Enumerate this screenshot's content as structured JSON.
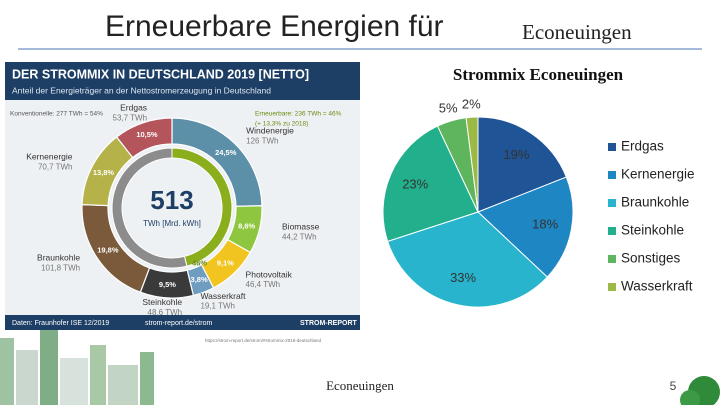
{
  "slide": {
    "title_sans": "Erneuerbare Energien für",
    "title_serif": "Econeuingen",
    "source_url": "https://strom-report.de/strom/#strommix-2019-deutschland",
    "footer": "Econeuingen",
    "page_number": "5"
  },
  "chart_data": [
    {
      "type": "pie",
      "title": "Strommix Econeuingen",
      "categories": [
        "Erdgas",
        "Kernenergie",
        "Braunkohle",
        "Steinkohle",
        "Sonstiges",
        "Wasserkraft"
      ],
      "values": [
        19,
        18,
        33,
        23,
        5,
        2
      ],
      "value_labels": [
        "19%",
        "18%",
        "33%",
        "23%",
        "5%",
        "2%"
      ],
      "colors": [
        "#1f5596",
        "#1f86c4",
        "#27b4cc",
        "#22b08c",
        "#5eb55e",
        "#9cb845"
      ],
      "legend": "right"
    },
    {
      "type": "donut",
      "title": "DER STROMMIX IN DEUTSCHLAND 2019 [NETTO]",
      "subtitle": "Anteil der Energieträger an der Nettostromerzeugung in Deutschland",
      "total": "513",
      "total_unit": "TWh [Mrd. kWh]",
      "change_note": "(+ 13,3% zu 2018)",
      "categories": [
        "Windenergie",
        "Biomasse",
        "Photovoltaik",
        "Wasserkraft",
        "Steinkohle",
        "Braunkohle",
        "Kernenergie",
        "Erdgas"
      ],
      "energy_labels": [
        "126 TWh",
        "44,2 TWh",
        "46,4 TWh",
        "19,1 TWh",
        "48,6 TWh",
        "101,8 TWh",
        "70,7 TWh",
        "53,7 TWh"
      ],
      "values": [
        24.5,
        8.6,
        9.1,
        3.8,
        9.5,
        19.8,
        13.8,
        10.5
      ],
      "value_labels": [
        "24,5%",
        "8,6%",
        "9,1%",
        "3,8%",
        "9,5%",
        "19,8%",
        "13,8%",
        "10,5%"
      ],
      "colors": [
        "#5c8fa8",
        "#8fc640",
        "#f2c41f",
        "#6f9dc0",
        "#3a3a3a",
        "#7b5a3b",
        "#b5b24a",
        "#b4545b"
      ],
      "inner_ring": {
        "labels": [
          "Erneuerbare: 236 TWh = 46%",
          "Konventionelle: 277 TWh = 54%"
        ],
        "values": [
          46,
          54
        ],
        "value_labels": [
          "46%",
          null
        ],
        "colors": [
          "#8aae1c",
          "#8c8c8c"
        ]
      },
      "source": "Daten: Fraunhofer ISE 12/2019",
      "website": "strom-report.de/strom",
      "brand": "STROM-REPORT"
    }
  ]
}
